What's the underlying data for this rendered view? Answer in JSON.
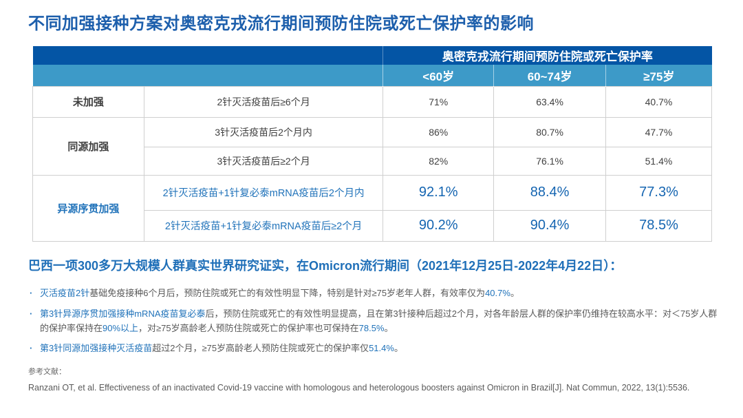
{
  "slide": {
    "title": "不同加强接种方案对奥密克戎流行期间预防住院或死亡保护率的影响"
  },
  "table": {
    "header_group": "奥密克戎流行期间预防住院或死亡保护率",
    "age_columns": [
      "<60岁",
      "60~74岁",
      "≥75岁"
    ],
    "rows": [
      {
        "group": "未加强",
        "scheme": "2针灭活疫苗后≥6个月",
        "values": [
          "71%",
          "63.4%",
          "40.7%"
        ]
      },
      {
        "group": "同源加强",
        "scheme": "3针灭活疫苗后2个月内",
        "values": [
          "86%",
          "80.7%",
          "47.7%"
        ]
      },
      {
        "scheme": "3针灭活疫苗后≥2个月",
        "values": [
          "82%",
          "76.1%",
          "51.4%"
        ]
      },
      {
        "group": "异源序贯加强",
        "scheme": "2针灭活疫苗+1针复必泰mRNA疫苗后2个月内",
        "values": [
          "92.1%",
          "88.4%",
          "77.3%"
        ]
      },
      {
        "scheme": "2针灭活疫苗+1针复必泰mRNA疫苗后≥2个月",
        "values": [
          "90.2%",
          "90.4%",
          "78.5%"
        ]
      }
    ]
  },
  "summary": {
    "subtitle": "巴西一项300多万大规模人群真实世界研究证实，在Omicron流行期间（2021年12月25日-2022年4月22日）：",
    "bullet_marker": "·",
    "bullets": [
      {
        "segments": [
          {
            "text": "灭活疫苗2针",
            "blue": true
          },
          {
            "text": "基础免疫接种6个月后，预防住院或死亡的有效性明显下降，特别是针对≥75岁老年人群，有效率仅为",
            "blue": false
          },
          {
            "text": "40.7%",
            "blue": true
          },
          {
            "text": "。",
            "blue": false
          }
        ]
      },
      {
        "segments": [
          {
            "text": "第3针异源序贯加强接种mRNA疫苗复必泰",
            "blue": true
          },
          {
            "text": "后，预防住院或死亡的有效性明显提高，且在第3针接种后超过2个月，对各年龄层人群的保护率仍维持在较高水平：对＜75岁人群的保护率保持在",
            "blue": false
          },
          {
            "text": "90%以上",
            "blue": true
          },
          {
            "text": "，对≥75岁高龄老人预防住院或死亡的保护率也可保持在",
            "blue": false
          },
          {
            "text": "78.5%",
            "blue": true
          },
          {
            "text": "。",
            "blue": false
          }
        ]
      },
      {
        "segments": [
          {
            "text": "第3针同源加强接种灭活疫苗",
            "blue": true
          },
          {
            "text": "超过2个月，≥75岁高龄老人预防住院或死亡的保护率仅",
            "blue": false
          },
          {
            "text": "51.4%",
            "blue": true
          },
          {
            "text": "。",
            "blue": false
          }
        ]
      }
    ],
    "reference_label": "参考文献：",
    "citation": "Ranzani OT, et al. Effectiveness of an inactivated Covid-19 vaccine with homologous and heterologous boosters against Omicron in Brazil[J]. Nat Commun, 2022, 13(1):5536."
  },
  "colors": {
    "title_blue": "#1d5fac",
    "header_dark_blue": "#0455a5",
    "header_light_blue": "#3d9ac8",
    "accent_blue": "#2173ba",
    "value_blue": "#1565b1",
    "body_text": "#404040",
    "muted_text": "#595959"
  }
}
